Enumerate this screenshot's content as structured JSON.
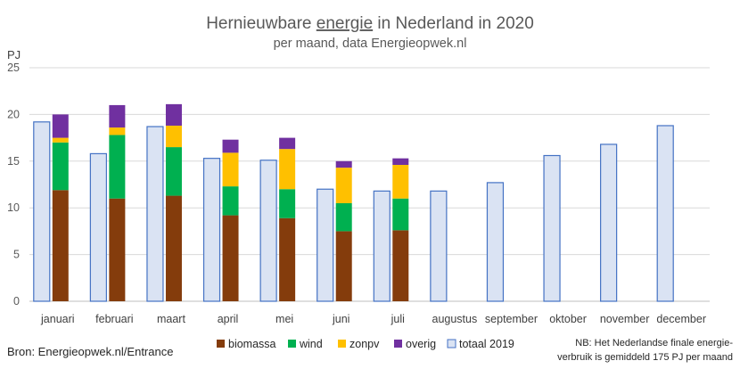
{
  "chart_data": {
    "type": "bar",
    "title_parts": [
      "Hernieuwbare ",
      "energie",
      " in Nederland in 2020"
    ],
    "subtitle": "per maand, data Energieopwek.nl",
    "ylabel": "PJ",
    "ylim": [
      0,
      25
    ],
    "yticks": [
      0,
      5,
      10,
      15,
      20,
      25
    ],
    "grid": true,
    "legend_position": "bottom",
    "categories": [
      "januari",
      "februari",
      "maart",
      "april",
      "mei",
      "juni",
      "juli",
      "augustus",
      "september",
      "oktober",
      "november",
      "december"
    ],
    "stacked_series": [
      {
        "name": "biomassa",
        "color": "#843C0C",
        "values": [
          11.9,
          11.0,
          11.3,
          9.2,
          8.9,
          7.5,
          7.6,
          null,
          null,
          null,
          null,
          null
        ]
      },
      {
        "name": "wind",
        "color": "#00B050",
        "values": [
          5.1,
          6.8,
          5.2,
          3.1,
          3.1,
          3.0,
          3.4,
          null,
          null,
          null,
          null,
          null
        ]
      },
      {
        "name": "zonpv",
        "color": "#FFC000",
        "values": [
          0.5,
          0.8,
          2.3,
          3.6,
          4.3,
          3.8,
          3.6,
          null,
          null,
          null,
          null,
          null
        ]
      },
      {
        "name": "overig",
        "color": "#7030A0",
        "values": [
          2.5,
          2.4,
          2.3,
          1.4,
          1.2,
          0.7,
          0.7,
          null,
          null,
          null,
          null,
          null
        ]
      }
    ],
    "comparison_series": {
      "name": "totaal 2019",
      "fill": "#DAE3F3",
      "stroke": "#4472C4",
      "values": [
        19.2,
        15.8,
        18.7,
        15.3,
        15.1,
        12.0,
        11.8,
        11.8,
        12.7,
        15.6,
        16.8,
        18.8
      ]
    }
  },
  "footer": {
    "source": "Bron: Energieopwek.nl/Entrance",
    "note_lines": [
      "NB: Het Nederlandse finale energie-",
      "verbruik is gemiddeld 175 PJ per maand"
    ]
  }
}
